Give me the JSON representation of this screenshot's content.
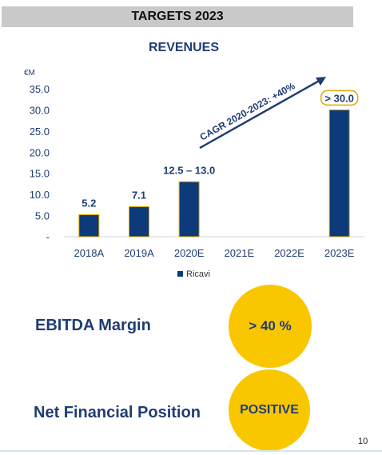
{
  "header": {
    "title": "TARGETS 2023"
  },
  "chart_data": {
    "type": "bar",
    "title": "REVENUES",
    "unit_label": "€M",
    "categories": [
      "2018A",
      "2019A",
      "2020E",
      "2021E",
      "2022E",
      "2023E"
    ],
    "series": [
      {
        "name": "Ricavi",
        "values": [
          5.2,
          7.1,
          13.0,
          null,
          null,
          30.0
        ]
      }
    ],
    "data_labels": [
      "5.2",
      "7.1",
      "12.5 – 13.0",
      "",
      "",
      "> 30.0"
    ],
    "y_ticks": [
      "-",
      "5.0",
      "10.0",
      "15.0",
      "20.0",
      "25.0",
      "30.0",
      "35.0"
    ],
    "ylim": [
      0,
      35
    ],
    "grid": false,
    "legend": "bottom",
    "annotation": "CAGR 2020-2023: +40%",
    "colors": {
      "bar": "#0d3a78",
      "bar_outline": "#e0a800",
      "arrow": "#1f3d73"
    }
  },
  "kpis": [
    {
      "label": "EBITDA Margin",
      "value": "> 40 %"
    },
    {
      "label": "Net Financial Position",
      "value": "POSITIVE"
    }
  ],
  "colors": {
    "circle": "#f9c700",
    "text_dark": "#1f3d73"
  },
  "footer": {
    "page_number": "10"
  }
}
